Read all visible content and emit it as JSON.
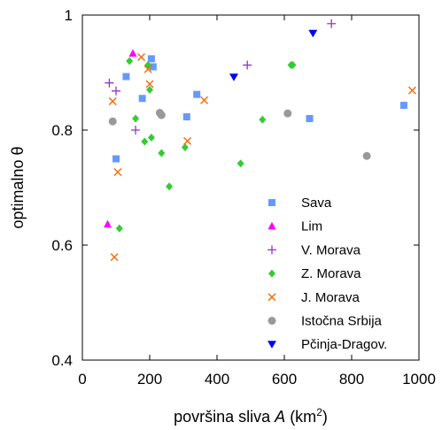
{
  "chart_data": {
    "type": "scatter",
    "xlabel": {
      "prefix": "površina sliva ",
      "var": "A",
      "unit_pre": " (km",
      "unit_sup": "2",
      "unit_post": ")"
    },
    "ylabel": "optimalno θ",
    "xlim": [
      0,
      1000
    ],
    "ylim": [
      0.4,
      1.0
    ],
    "xticks": [
      0,
      200,
      400,
      600,
      800,
      1000
    ],
    "yticks": [
      0.4,
      0.6,
      0.8,
      1.0
    ],
    "xtick_labels": [
      "0",
      "200",
      "400",
      "600",
      "800",
      "1000"
    ],
    "ytick_labels": [
      "0.4",
      "0.6",
      "0.8",
      "1"
    ],
    "grid": false,
    "legend_position": "bottom-right",
    "series": [
      {
        "name": "Sava",
        "marker": "square",
        "color": "#6699ff",
        "points": [
          [
            100,
            0.75
          ],
          [
            130,
            0.893
          ],
          [
            178,
            0.855
          ],
          [
            205,
            0.924
          ],
          [
            210,
            0.91
          ],
          [
            310,
            0.823
          ],
          [
            340,
            0.862
          ],
          [
            675,
            0.82
          ],
          [
            955,
            0.843
          ]
        ]
      },
      {
        "name": "Lim",
        "marker": "triangle-up",
        "color": "#ff00ff",
        "points": [
          [
            75,
            0.636
          ],
          [
            150,
            0.933
          ]
        ]
      },
      {
        "name": "V. Morava",
        "marker": "plus",
        "color": "#9933cc",
        "points": [
          [
            80,
            0.882
          ],
          [
            100,
            0.868
          ],
          [
            158,
            0.8
          ],
          [
            490,
            0.913
          ],
          [
            740,
            0.985
          ]
        ]
      },
      {
        "name": "Z. Morava",
        "marker": "diamond",
        "color": "#33cc33",
        "points": [
          [
            110,
            0.629
          ],
          [
            140,
            0.92
          ],
          [
            158,
            0.82
          ],
          [
            185,
            0.78
          ],
          [
            195,
            0.913
          ],
          [
            200,
            0.87
          ],
          [
            205,
            0.787
          ],
          [
            235,
            0.76
          ],
          [
            258,
            0.702
          ],
          [
            305,
            0.77
          ],
          [
            470,
            0.742
          ],
          [
            535,
            0.818
          ],
          [
            620,
            0.913
          ],
          [
            625,
            0.913
          ]
        ]
      },
      {
        "name": "J. Morava",
        "marker": "x",
        "color": "#ff6600",
        "points": [
          [
            90,
            0.85
          ],
          [
            95,
            0.579
          ],
          [
            105,
            0.727
          ],
          [
            175,
            0.927
          ],
          [
            195,
            0.906
          ],
          [
            200,
            0.88
          ],
          [
            312,
            0.781
          ],
          [
            362,
            0.852
          ],
          [
            980,
            0.869
          ]
        ]
      },
      {
        "name": "Istočna Srbija",
        "marker": "circle",
        "color": "#999999",
        "points": [
          [
            90,
            0.815
          ],
          [
            230,
            0.83
          ],
          [
            235,
            0.826
          ],
          [
            610,
            0.829
          ],
          [
            845,
            0.755
          ]
        ]
      },
      {
        "name": "Pčinja-Dragov.",
        "marker": "triangle-down",
        "color": "#0000ff",
        "points": [
          [
            450,
            0.892
          ],
          [
            685,
            0.968
          ]
        ]
      }
    ]
  }
}
